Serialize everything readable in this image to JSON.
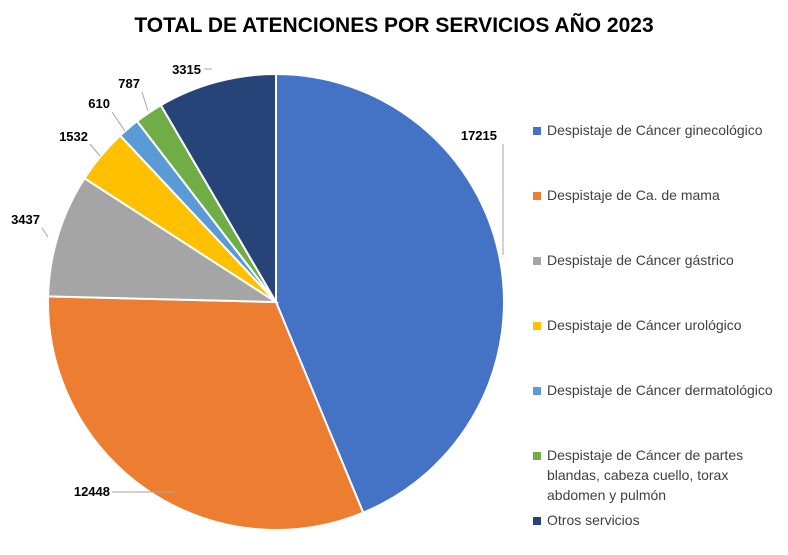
{
  "chart_data": {
    "type": "pie",
    "title": "TOTAL DE ATENCIONES POR SERVICIOS AÑO 2023",
    "categories": [
      "Despistaje de Cáncer ginecológico",
      "Despistaje de Ca. de mama",
      "Despistaje de Cáncer gástrico",
      "Despistaje de Cáncer urológico",
      "Despistaje de Cáncer dermatológico",
      "Despistaje de Cáncer de partes blandas, cabeza cuello, torax abdomen y pulmón",
      "Otros servicios"
    ],
    "values": [
      17215,
      12448,
      3437,
      1532,
      610,
      787,
      3315
    ],
    "colors": [
      "#4472C4",
      "#ED7D31",
      "#A5A5A5",
      "#FFC000",
      "#5B9BD5",
      "#70AD47",
      "#264478"
    ],
    "legend_position": "right",
    "data_labels": true
  },
  "legend": {
    "items": [
      "Despistaje de Cáncer ginecológico",
      "Despistaje de Ca. de mama",
      "Despistaje de Cáncer gástrico",
      "Despistaje de Cáncer urológico",
      "Despistaje de Cáncer dermatológico",
      "Despistaje de Cáncer de partes blandas, cabeza cuello, torax abdomen y pulmón",
      "Otros servicios"
    ]
  }
}
